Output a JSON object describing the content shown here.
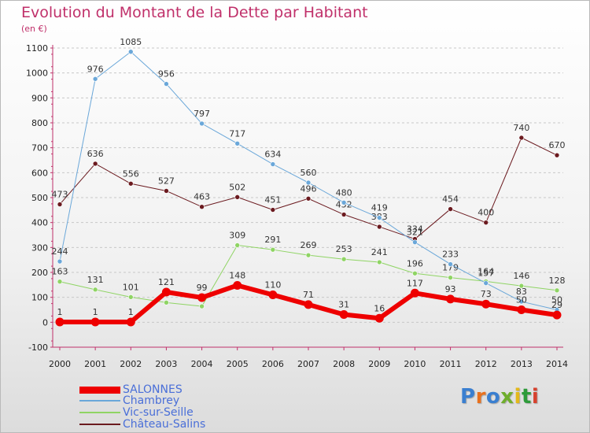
{
  "title": "Evolution du Montant de la Dette par Habitant",
  "subtitle": "(en €)",
  "logo": {
    "text": "Proxiti",
    "colors": [
      "#3a7fd0",
      "#e8711f",
      "#3a7fd0",
      "#6fae2c",
      "#e3b81a",
      "#2d9b3a",
      "#d6422e"
    ]
  },
  "chart_data": {
    "type": "line",
    "x": [
      2000,
      2001,
      2002,
      2003,
      2004,
      2005,
      2006,
      2007,
      2008,
      2009,
      2010,
      2011,
      2012,
      2013,
      2014
    ],
    "ylim": [
      -100,
      1100
    ],
    "yticks": [
      -100,
      0,
      100,
      200,
      300,
      400,
      500,
      600,
      700,
      800,
      900,
      1000,
      1100
    ],
    "grid": "horizontal dashed",
    "legend_position": "bottom-left",
    "series": [
      {
        "name": "Château-Salins",
        "color": "#6b1a1f",
        "width": 1,
        "values": [
          473,
          636,
          556,
          527,
          463,
          502,
          451,
          496,
          432,
          383,
          334,
          454,
          400,
          740,
          670
        ],
        "labels": [
          "473",
          "636",
          "556",
          "527",
          "463",
          "502",
          "451",
          "496",
          "432",
          "383",
          "334",
          "454",
          "400",
          "740",
          "670"
        ]
      },
      {
        "name": "Vic-sur-Seille",
        "color": "#8fd464",
        "width": 1,
        "values": [
          163,
          131,
          101,
          79,
          64,
          309,
          291,
          269,
          253,
          241,
          196,
          179,
          164,
          146,
          128
        ],
        "labels": [
          "163",
          "131",
          "101",
          "",
          "",
          "309",
          "291",
          "269",
          "253",
          "241",
          "196",
          "179",
          "164",
          "146",
          "128"
        ]
      },
      {
        "name": "Chambrey",
        "color": "#6aa7d9",
        "width": 1,
        "values": [
          244,
          976,
          1085,
          956,
          797,
          717,
          634,
          560,
          480,
          419,
          321,
          233,
          157,
          83,
          50
        ],
        "labels": [
          "244",
          "976",
          "1085",
          "956",
          "797",
          "717",
          "634",
          "560",
          "480",
          "419",
          "321",
          "233",
          "157",
          "83",
          "50"
        ]
      },
      {
        "name": "SALONNES",
        "color": "#ee0000",
        "width": 6,
        "values": [
          1,
          1,
          1,
          121,
          99,
          148,
          110,
          71,
          31,
          16,
          117,
          93,
          73,
          50,
          29
        ],
        "labels": [
          "1",
          "1",
          "1",
          "121",
          "99",
          "148",
          "110",
          "71",
          "31",
          "16",
          "117",
          "93",
          "73",
          "50",
          "29"
        ]
      }
    ],
    "legend": [
      "SALONNES",
      "Chambrey",
      "Vic-sur-Seille",
      "Château-Salins"
    ]
  }
}
